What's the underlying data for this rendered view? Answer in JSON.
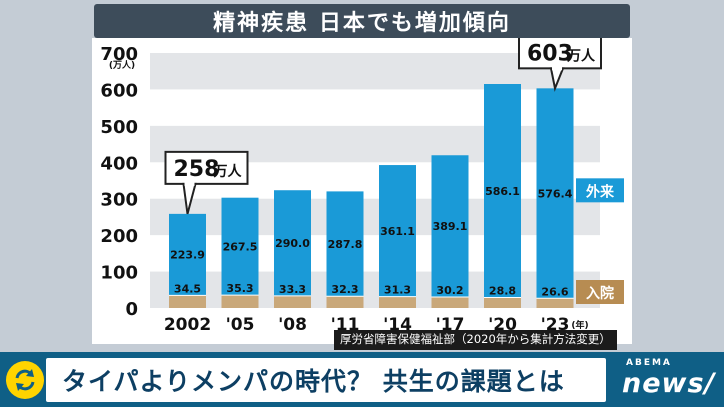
{
  "title": "精神疾患 日本でも増加傾向",
  "source": "厚労省障害保健福祉部（2020年から集計方法変更）",
  "banner": "タイパよりメンパの時代？ 共生の課題とは",
  "logo": {
    "brand": "ABEMA",
    "news": "news/"
  },
  "colors": {
    "outpatient": "#1a9ad7",
    "inpatient": "#c9a87a",
    "callout_out": "#1a9ad7",
    "callout_in": "#b78c52"
  },
  "chart_data": {
    "type": "bar",
    "stacked": true,
    "categories": [
      "2002",
      "'05",
      "'08",
      "'11",
      "'14",
      "'17",
      "'20",
      "'23"
    ],
    "x_unit_label": "(年)",
    "series": [
      {
        "name": "入院",
        "values": [
          34.5,
          35.3,
          33.3,
          32.3,
          31.3,
          30.2,
          28.8,
          26.6
        ]
      },
      {
        "name": "外来",
        "values": [
          223.9,
          267.5,
          290.0,
          287.8,
          361.1,
          389.1,
          586.1,
          576.4
        ]
      }
    ],
    "value_labels": {
      "inpatient": [
        "34.5",
        "35.3",
        "33.3",
        "32.3",
        "31.3",
        "30.2",
        "28.8",
        "26.6"
      ],
      "outpatient": [
        "223.9",
        "267.5",
        "290.0",
        "287.8",
        "361.1",
        "389.1",
        "586.1",
        "576.4"
      ]
    },
    "y_unit_label": "(万人)",
    "ylim": [
      0,
      700
    ],
    "yticks": [
      "0",
      "100",
      "200",
      "300",
      "400",
      "500",
      "600",
      "700"
    ],
    "grid_bands": true,
    "annotations": [
      {
        "category_index": 0,
        "value": "258",
        "unit": "万人"
      },
      {
        "category_index": 7,
        "value": "603",
        "unit": "万人"
      }
    ]
  }
}
